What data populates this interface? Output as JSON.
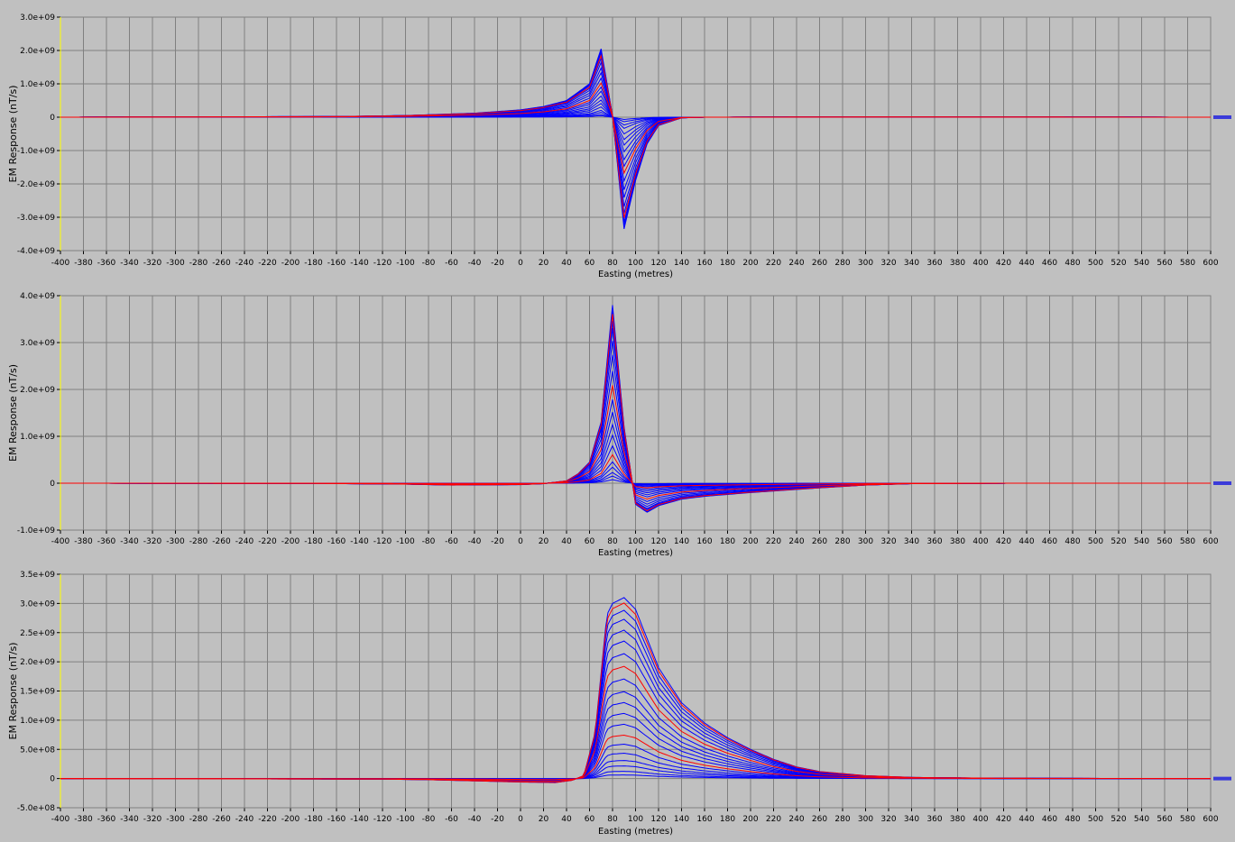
{
  "chart_data": [
    {
      "type": "line",
      "xlabel": "Easting (metres)",
      "ylabel": "EM Response (nT/s)",
      "xlim": [
        -400,
        600
      ],
      "ylim": [
        -4000000000.0,
        3000000000.0
      ],
      "x_ticks": [
        "-400",
        "-380",
        "-360",
        "-340",
        "-320",
        "-300",
        "-280",
        "-260",
        "-240",
        "-220",
        "-200",
        "-180",
        "-160",
        "-140",
        "-120",
        "-100",
        "-80",
        "-60",
        "-40",
        "-20",
        "0",
        "20",
        "40",
        "60",
        "80",
        "100",
        "120",
        "140",
        "160",
        "180",
        "200",
        "220",
        "240",
        "260",
        "280",
        "300",
        "320",
        "340",
        "360",
        "380",
        "400",
        "420",
        "440",
        "460",
        "480",
        "500",
        "520",
        "540",
        "560",
        "580",
        "600"
      ],
      "y_ticks": [
        {
          "value": 3000000000.0,
          "label": "3.0e+09"
        },
        {
          "value": 2000000000.0,
          "label": "2.0e+09"
        },
        {
          "value": 1000000000.0,
          "label": "1.0e+09"
        },
        {
          "value": 0,
          "label": "0"
        },
        {
          "value": -1000000000.0,
          "label": "-1.0e+09"
        },
        {
          "value": -2000000000.0,
          "label": "-2.0e+09"
        },
        {
          "value": -3000000000.0,
          "label": "-3.0e+09"
        },
        {
          "value": -4000000000.0,
          "label": "-4.0e+09"
        }
      ],
      "grid": true,
      "channels": 20,
      "highlight_channels": [
        3,
        9
      ],
      "series_color": "#0000ff",
      "highlight_color": "#ff0000",
      "envelope": {
        "x": [
          -400,
          -160,
          -100,
          -40,
          0,
          20,
          40,
          60,
          70,
          80,
          90,
          100,
          110,
          120,
          140,
          160,
          320,
          600
        ],
        "amp": [
          0,
          20000000.0,
          50000000.0,
          120000000.0,
          220000000.0,
          320000000.0,
          500000000.0,
          1000000000.0,
          2050000000.0,
          50000000.0,
          -3350000000.0,
          -1900000000.0,
          -800000000.0,
          -250000000.0,
          -20000000.0,
          0,
          10000000.0,
          0
        ]
      },
      "channel_factors": [
        1.0,
        0.97,
        0.94,
        0.9,
        0.86,
        0.8,
        0.72,
        0.65,
        0.57,
        0.5,
        0.44,
        0.38,
        0.31,
        0.25,
        0.2,
        0.15,
        0.1,
        0.07,
        0.04,
        0.02
      ]
    },
    {
      "type": "line",
      "xlabel": "Easting (metres)",
      "ylabel": "EM Response (nT/s)",
      "xlim": [
        -400,
        600
      ],
      "ylim": [
        -1000000000.0,
        4000000000.0
      ],
      "x_ticks": [
        "-400",
        "-380",
        "-360",
        "-340",
        "-320",
        "-300",
        "-280",
        "-260",
        "-240",
        "-220",
        "-200",
        "-180",
        "-160",
        "-140",
        "-120",
        "-100",
        "-80",
        "-60",
        "-40",
        "-20",
        "0",
        "20",
        "40",
        "60",
        "80",
        "100",
        "120",
        "140",
        "160",
        "180",
        "200",
        "220",
        "240",
        "260",
        "280",
        "300",
        "320",
        "340",
        "360",
        "380",
        "400",
        "420",
        "440",
        "460",
        "480",
        "500",
        "520",
        "540",
        "560",
        "580",
        "600"
      ],
      "y_ticks": [
        {
          "value": 4000000000.0,
          "label": "4.0e+09"
        },
        {
          "value": 3000000000.0,
          "label": "3.0e+09"
        },
        {
          "value": 2000000000.0,
          "label": "2.0e+09"
        },
        {
          "value": 1000000000.0,
          "label": "1.0e+09"
        },
        {
          "value": 0,
          "label": "0"
        },
        {
          "value": -1000000000.0,
          "label": "-1.0e+09"
        }
      ],
      "grid": true,
      "channels": 20,
      "highlight_channels": [
        2,
        8,
        14
      ],
      "series_color": "#0000ff",
      "highlight_color": "#ff0000",
      "envelope": {
        "x": [
          -400,
          -180,
          -100,
          -60,
          0,
          20,
          40,
          50,
          60,
          70,
          80,
          90,
          100,
          110,
          120,
          140,
          160,
          200,
          260,
          300,
          340,
          430,
          600
        ],
        "amp": [
          0,
          -5000000.0,
          -20000000.0,
          -40000000.0,
          -30000000.0,
          -10000000.0,
          50000000.0,
          200000000.0,
          450000000.0,
          1300000000.0,
          3800000000.0,
          1200000000.0,
          -450000000.0,
          -620000000.0,
          -480000000.0,
          -340000000.0,
          -280000000.0,
          -200000000.0,
          -100000000.0,
          -40000000.0,
          -10000000.0,
          0,
          0
        ]
      },
      "channel_factors": [
        1.0,
        0.98,
        0.95,
        0.91,
        0.87,
        0.8,
        0.72,
        0.63,
        0.55,
        0.47,
        0.4,
        0.33,
        0.27,
        0.21,
        0.16,
        0.12,
        0.09,
        0.06,
        0.04,
        0.02
      ]
    },
    {
      "type": "line",
      "xlabel": "Easting (metres)",
      "ylabel": "EM Response (nT/s)",
      "xlim": [
        -400,
        600
      ],
      "ylim": [
        -500000000.0,
        3500000000.0
      ],
      "x_ticks": [
        "-400",
        "-380",
        "-360",
        "-340",
        "-320",
        "-300",
        "-280",
        "-260",
        "-240",
        "-220",
        "-200",
        "-180",
        "-160",
        "-140",
        "-120",
        "-100",
        "-80",
        "-60",
        "-40",
        "-20",
        "0",
        "20",
        "40",
        "60",
        "80",
        "100",
        "120",
        "140",
        "160",
        "180",
        "200",
        "220",
        "240",
        "260",
        "280",
        "300",
        "320",
        "340",
        "360",
        "380",
        "400",
        "420",
        "440",
        "460",
        "480",
        "500",
        "520",
        "540",
        "560",
        "580",
        "600"
      ],
      "y_ticks": [
        {
          "value": 3500000000.0,
          "label": "3.5e+09"
        },
        {
          "value": 3000000000.0,
          "label": "3.0e+09"
        },
        {
          "value": 2500000000.0,
          "label": "2.5e+09"
        },
        {
          "value": 2000000000.0,
          "label": "2.0e+09"
        },
        {
          "value": 1500000000.0,
          "label": "1.5e+09"
        },
        {
          "value": 1000000000.0,
          "label": "1.0e+09"
        },
        {
          "value": 500000000.0,
          "label": "5.0e+08"
        },
        {
          "value": 0,
          "label": "0"
        },
        {
          "value": -500000000.0,
          "label": "-5.0e+08"
        }
      ],
      "grid": true,
      "channels": 20,
      "highlight_channels": [
        1,
        7,
        13
      ],
      "series_color": "#0000ff",
      "highlight_color": "#ff0000",
      "envelope": {
        "x": [
          -400,
          -120,
          -80,
          -40,
          0,
          30,
          45,
          55,
          65,
          75,
          80,
          90,
          100,
          110,
          120,
          140,
          160,
          180,
          200,
          220,
          240,
          260,
          300,
          340,
          420,
          600
        ],
        "amp": [
          0,
          -10000000.0,
          -20000000.0,
          -40000000.0,
          -60000000.0,
          -70000000.0,
          -30000000.0,
          50000000.0,
          800000000.0,
          2800000000.0,
          3000000000.0,
          3100000000.0,
          2900000000.0,
          2400000000.0,
          1900000000.0,
          1300000000.0,
          950000000.0,
          700000000.0,
          500000000.0,
          330000000.0,
          200000000.0,
          120000000.0,
          50000000.0,
          20000000.0,
          5000000.0,
          0
        ]
      },
      "channel_factors": [
        1.0,
        0.97,
        0.93,
        0.88,
        0.82,
        0.76,
        0.69,
        0.62,
        0.55,
        0.48,
        0.42,
        0.36,
        0.3,
        0.24,
        0.19,
        0.14,
        0.1,
        0.07,
        0.04,
        0.02
      ]
    }
  ]
}
